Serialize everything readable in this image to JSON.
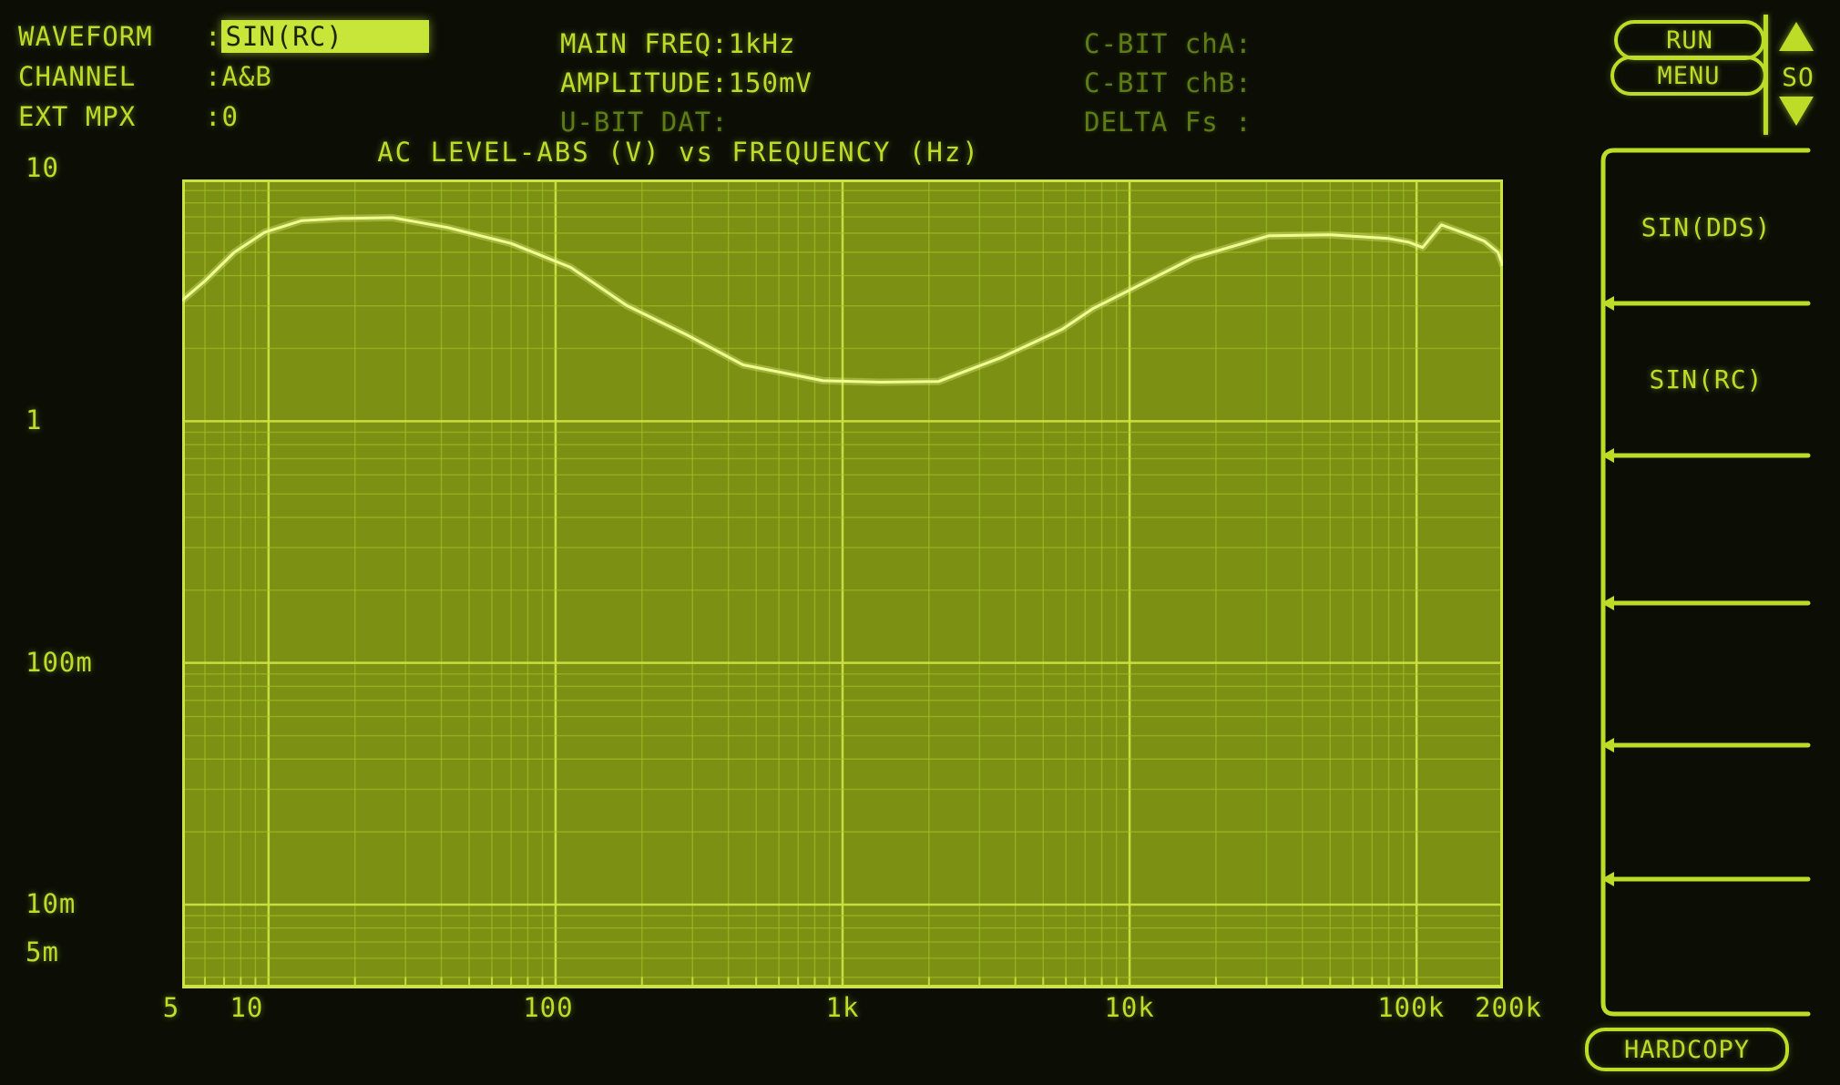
{
  "colors": {
    "screen_bg": "#0c0e05",
    "text_bright": "#bcdc28",
    "text_dim": "#5e7c16",
    "highlight_bg": "#c8e63a",
    "highlight_text": "#1c2603",
    "plot_bg": "#7c9114",
    "grid_minor": "#a6c226",
    "grid_major": "#cce342",
    "curve": "#f0fc90"
  },
  "header": {
    "col1": {
      "rows": [
        {
          "label": "WAVEFORM",
          "sep": ":",
          "value": "SIN(RC)",
          "highlight": true
        },
        {
          "label": "CHANNEL",
          "sep": ":",
          "value": "A&B",
          "highlight": false
        },
        {
          "label": "EXT MPX",
          "sep": ":",
          "value": "0",
          "highlight": false
        }
      ]
    },
    "col2": {
      "rows": [
        {
          "text": "MAIN FREQ:1kHz",
          "dim": false
        },
        {
          "text": "AMPLITUDE:150mV",
          "dim": false
        },
        {
          "text": "U-BIT DAT:",
          "dim": true
        }
      ]
    },
    "col3": {
      "rows": [
        {
          "text": "C-BIT chA:",
          "dim": true
        },
        {
          "text": "C-BIT chB:",
          "dim": true
        },
        {
          "text": "DELTA Fs :",
          "dim": true
        }
      ]
    },
    "run_button": "RUN",
    "menu_button": "MENU",
    "scroll": {
      "up_icon": "up-arrow",
      "label": "SO",
      "down_icon": "down-arrow"
    }
  },
  "chart_data": {
    "type": "line",
    "title": "AC LEVEL-ABS (V) vs FREQUENCY (Hz)",
    "xlabel": "FREQUENCY (Hz)",
    "ylabel": "AC LEVEL-ABS (V)",
    "x_scale": "log",
    "y_scale": "log",
    "xlim": [
      5,
      200000
    ],
    "ylim": [
      0.0045,
      10
    ],
    "grid": "log-minor-both",
    "x_ticks": [
      {
        "label": "5",
        "value": 5,
        "dx": -12
      },
      {
        "label": "10",
        "value": 10,
        "dx": -24
      },
      {
        "label": "100",
        "value": 100,
        "dx": -8
      },
      {
        "label": "1k",
        "value": 1000,
        "dx": 0
      },
      {
        "label": "10k",
        "value": 10000,
        "dx": 0
      },
      {
        "label": "100k",
        "value": 100000,
        "dx": -6
      },
      {
        "label": "200k",
        "value": 200000,
        "dx": 6
      }
    ],
    "y_ticks": [
      {
        "label": "10",
        "value": 10,
        "dy": -12
      },
      {
        "label": "1",
        "value": 1,
        "dy": 0
      },
      {
        "label": "100m",
        "value": 0.1,
        "dy": 0
      },
      {
        "label": "10m",
        "value": 0.01,
        "dy": 0
      },
      {
        "label": "5m",
        "value": 0.005,
        "dy": -27
      }
    ],
    "series": [
      {
        "name": "response",
        "x": [
          5,
          6,
          7.6,
          9.7,
          13,
          18,
          27,
          42,
          70,
          113,
          177,
          290,
          450,
          855,
          1360,
          2160,
          3560,
          5830,
          7450,
          16700,
          30600,
          50200,
          79900,
          94000,
          105000,
          122000,
          136000,
          152000,
          172000,
          192000,
          200000
        ],
        "y": [
          3.16,
          3.8,
          5.0,
          6.05,
          6.75,
          6.9,
          6.95,
          6.33,
          5.44,
          4.33,
          3.01,
          2.26,
          1.71,
          1.47,
          1.45,
          1.46,
          1.83,
          2.4,
          2.92,
          4.74,
          5.85,
          5.9,
          5.7,
          5.5,
          5.23,
          6.49,
          6.2,
          5.9,
          5.56,
          5.0,
          4.4
        ]
      }
    ]
  },
  "softkeys": [
    {
      "label": "SIN(DDS)"
    },
    {
      "label": "SIN(RC)"
    },
    {
      "label": ""
    },
    {
      "label": ""
    },
    {
      "label": ""
    },
    {
      "label": ""
    }
  ],
  "hardcopy_button": "HARDCOPY"
}
